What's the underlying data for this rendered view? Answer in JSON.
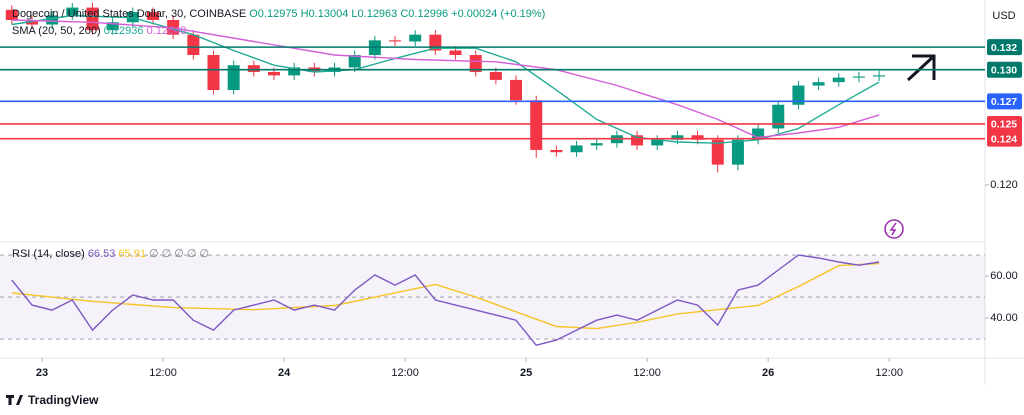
{
  "chart_data": {
    "type": "candlestick",
    "title": "Dogecoin / United States Dollar, 30, COINBASE",
    "ohlc_legend": [
      "O0.12975",
      "H0.13004",
      "L0.12963",
      "C0.12996",
      "+0.00024 (+0.19%)"
    ],
    "indicator_label": "SMA (20, 50, 200)",
    "indicator_values": [
      "0.12936",
      "0.12648"
    ],
    "currency": "USD",
    "up_color": "#089981",
    "down_color": "#f23645",
    "x": [
      -3,
      -1,
      1,
      3,
      5,
      7,
      9,
      11,
      13,
      15,
      17,
      19,
      21,
      23,
      25,
      27,
      29,
      31,
      33,
      35,
      37,
      39,
      41,
      43,
      45,
      47,
      49,
      51,
      53,
      55,
      57,
      59,
      61,
      63,
      65,
      67,
      69,
      71,
      73,
      75,
      77,
      79,
      81,
      83
    ],
    "open": [
      0.1355,
      0.1346,
      0.1342,
      0.135,
      0.1357,
      0.1337,
      0.1344,
      0.1353,
      0.1346,
      0.1333,
      0.1315,
      0.1284,
      0.1306,
      0.13,
      0.1297,
      0.1304,
      0.13,
      0.1304,
      0.1315,
      0.1328,
      0.1327,
      0.1333,
      0.1319,
      0.1315,
      0.13,
      0.1293,
      0.1275,
      0.1231,
      0.1229,
      0.1235,
      0.1237,
      0.1244,
      0.1235,
      0.124,
      0.1244,
      0.124,
      0.1218,
      0.124,
      0.125,
      0.1271,
      0.1288,
      0.1291,
      0.1295,
      0.1296
    ],
    "high": [
      0.1359,
      0.135,
      0.1354,
      0.1361,
      0.1361,
      0.1348,
      0.1357,
      0.1357,
      0.135,
      0.1337,
      0.1319,
      0.131,
      0.131,
      0.1304,
      0.1308,
      0.1308,
      0.1308,
      0.1319,
      0.1332,
      0.1332,
      0.1337,
      0.1337,
      0.1323,
      0.1319,
      0.1304,
      0.1297,
      0.1279,
      0.1235,
      0.1239,
      0.1241,
      0.1248,
      0.1248,
      0.1244,
      0.1248,
      0.1248,
      0.1244,
      0.1244,
      0.1254,
      0.1275,
      0.1292,
      0.1295,
      0.1299,
      0.13,
      0.1301
    ],
    "low": [
      0.1342,
      0.1338,
      0.1338,
      0.1346,
      0.1333,
      0.1333,
      0.134,
      0.1342,
      0.1329,
      0.1311,
      0.128,
      0.128,
      0.1296,
      0.1293,
      0.1293,
      0.1296,
      0.1296,
      0.13,
      0.1311,
      0.1323,
      0.1323,
      0.1315,
      0.1311,
      0.1296,
      0.1289,
      0.1271,
      0.1224,
      0.1225,
      0.1225,
      0.1231,
      0.1233,
      0.1231,
      0.1231,
      0.1236,
      0.1236,
      0.1211,
      0.1213,
      0.1236,
      0.1246,
      0.1267,
      0.1284,
      0.1287,
      0.1291,
      0.1292
    ],
    "close": [
      0.1346,
      0.1342,
      0.135,
      0.1357,
      0.1337,
      0.1344,
      0.1353,
      0.1346,
      0.1333,
      0.1315,
      0.1284,
      0.1306,
      0.13,
      0.1297,
      0.1304,
      0.13,
      0.1304,
      0.1315,
      0.1328,
      0.1327,
      0.1333,
      0.1319,
      0.1315,
      0.13,
      0.1293,
      0.1275,
      0.1231,
      0.1229,
      0.1235,
      0.1237,
      0.1244,
      0.1235,
      0.124,
      0.1244,
      0.124,
      0.1218,
      0.124,
      0.125,
      0.1271,
      0.1288,
      0.1291,
      0.1295,
      0.1296,
      0.1297
    ],
    "series": [
      {
        "color": "#22ab94",
        "x": [
          -3,
          3,
          9,
          15,
          19,
          23,
          27,
          31,
          35,
          39,
          43,
          47,
          51,
          55,
          59,
          63,
          67,
          71,
          75,
          79,
          83
        ],
        "values": [
          0.1342,
          0.135,
          0.1348,
          0.1333,
          0.1319,
          0.1306,
          0.13,
          0.1302,
          0.1312,
          0.1321,
          0.1321,
          0.1309,
          0.1284,
          0.1258,
          0.1242,
          0.1238,
          0.1237,
          0.124,
          0.125,
          0.1271,
          0.1291
        ]
      },
      {
        "color": "#d35fd8",
        "x": [
          -3,
          5,
          13,
          21,
          29,
          37,
          45,
          51,
          57,
          63,
          67,
          71,
          75,
          79,
          83
        ],
        "values": [
          0.1346,
          0.1344,
          0.1339,
          0.1327,
          0.1315,
          0.1311,
          0.1309,
          0.1302,
          0.1288,
          0.1271,
          0.1258,
          0.1242,
          0.1246,
          0.1251,
          0.1262
        ]
      }
    ],
    "levels": [
      {
        "value": 0.1322,
        "label": "0.132",
        "color": "#00796b"
      },
      {
        "value": 0.1302,
        "label": "0.130",
        "color": "#00796b"
      },
      {
        "value": 0.1274,
        "label": "0.127",
        "color": "#2962ff"
      },
      {
        "value": 0.1254,
        "label": "0.125",
        "color": "#f23645"
      },
      {
        "value": 0.1241,
        "label": "0.124",
        "color": "#f23645"
      }
    ],
    "xlim": [
      -4.17,
      93.5
    ],
    "xticks": [
      {
        "value": 0,
        "label": "23"
      },
      {
        "value": 12,
        "label": "12:00"
      },
      {
        "value": 24,
        "label": "24"
      },
      {
        "value": 36,
        "label": "12:00"
      },
      {
        "value": 48,
        "label": "25"
      },
      {
        "value": 60,
        "label": "12:00"
      },
      {
        "value": 72,
        "label": "26"
      },
      {
        "value": 84,
        "label": "12:00"
      }
    ],
    "ylim": [
      0.11513,
      0.13637
    ],
    "yticks": [
      {
        "value": 0.12,
        "label": "0.120"
      }
    ],
    "rsi": {
      "label": "RSI (14, close)",
      "legend_values": [
        "66.53",
        "65.91",
        "∅ ∅ ∅ ∅ ∅"
      ],
      "color": "#7e57c2",
      "ma_color": "#f7c325",
      "x": [
        -3,
        -1,
        1,
        3,
        5,
        7,
        9,
        11,
        13,
        15,
        17,
        19,
        21,
        23,
        25,
        27,
        29,
        31,
        33,
        35,
        37,
        39,
        41,
        43,
        45,
        47,
        49,
        51,
        53,
        55,
        57,
        59,
        61,
        63,
        65,
        67,
        69,
        71,
        73,
        75,
        77,
        79,
        81,
        83
      ],
      "values": [
        58.1,
        46.2,
        43.8,
        48.6,
        34.3,
        43.8,
        51.0,
        48.6,
        48.6,
        39.0,
        34.3,
        43.8,
        46.2,
        48.6,
        43.8,
        46.2,
        43.8,
        53.3,
        60.5,
        55.7,
        60.5,
        48.6,
        46.2,
        43.8,
        41.4,
        39.0,
        27.1,
        29.5,
        34.3,
        39.0,
        41.4,
        39.0,
        43.8,
        48.6,
        46.2,
        36.7,
        53.3,
        55.7,
        62.9,
        70.0,
        68.6,
        66.7,
        65.2,
        66.7
      ],
      "ma_x": [
        -3,
        5,
        13,
        21,
        29,
        35,
        39,
        43,
        47,
        51,
        55,
        59,
        63,
        67,
        71,
        75,
        79,
        83
      ],
      "ma_values": [
        52,
        48,
        45,
        44,
        46,
        52,
        56,
        50,
        43,
        36,
        35,
        38,
        42,
        44,
        46,
        55,
        65,
        66
      ],
      "band": [
        30,
        70
      ],
      "mid": 50,
      "ylim": [
        24.8,
        74.8
      ],
      "yticks": [
        {
          "value": 60,
          "label": "60.00"
        },
        {
          "value": 40,
          "label": "40.00"
        }
      ]
    },
    "brand": "TradingView"
  }
}
